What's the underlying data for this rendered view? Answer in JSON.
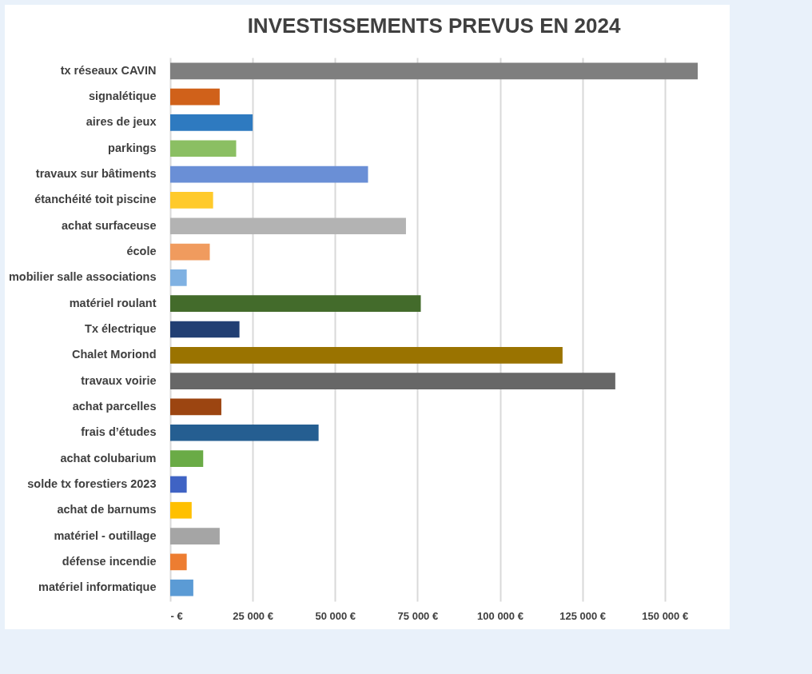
{
  "chart_data": {
    "type": "bar",
    "orientation": "horizontal",
    "title": "INVESTISSEMENTS PREVUS EN 2024",
    "categories": [
      "tx réseaux CAVIN",
      "signalétique",
      "aires de jeux",
      "parkings",
      "travaux sur bâtiments",
      "étanchéité toit piscine",
      "achat surfaceuse",
      "école",
      "mobilier salle associations",
      "matériel roulant",
      "Tx électrique",
      "Chalet Moriond",
      "travaux voirie",
      "achat parcelles",
      "frais d’études",
      "achat colubarium",
      "solde tx forestiers 2023",
      "achat de barnums",
      "matériel -  outillage",
      "défense incendie",
      "matériel informatique"
    ],
    "values": [
      160000,
      15000,
      25000,
      20000,
      60000,
      13000,
      71500,
      12000,
      5000,
      76000,
      21000,
      119000,
      135000,
      15500,
      45000,
      10000,
      5000,
      6500,
      15000,
      5000,
      7000
    ],
    "colors": [
      "#7f7f7f",
      "#d0611a",
      "#2e7ac0",
      "#8bbf63",
      "#6a8fd6",
      "#ffca2b",
      "#b3b3b3",
      "#f09b5e",
      "#7fb1e2",
      "#436b2b",
      "#223f73",
      "#9a7300",
      "#676767",
      "#9c4511",
      "#255e91",
      "#6aab46",
      "#3f63c4",
      "#ffc000",
      "#a5a5a5",
      "#ed7d31",
      "#5b9bd5"
    ],
    "xlim": [
      0,
      160000
    ],
    "xticks": [
      {
        "value": 0,
        "label": "-  €"
      },
      {
        "value": 25000,
        "label": "25 000 €"
      },
      {
        "value": 50000,
        "label": "50 000 €"
      },
      {
        "value": 75000,
        "label": "75 000 €"
      },
      {
        "value": 100000,
        "label": "100 000 €"
      },
      {
        "value": 125000,
        "label": "125 000 €"
      },
      {
        "value": 150000,
        "label": "150 000 €"
      }
    ],
    "grid": "x"
  }
}
